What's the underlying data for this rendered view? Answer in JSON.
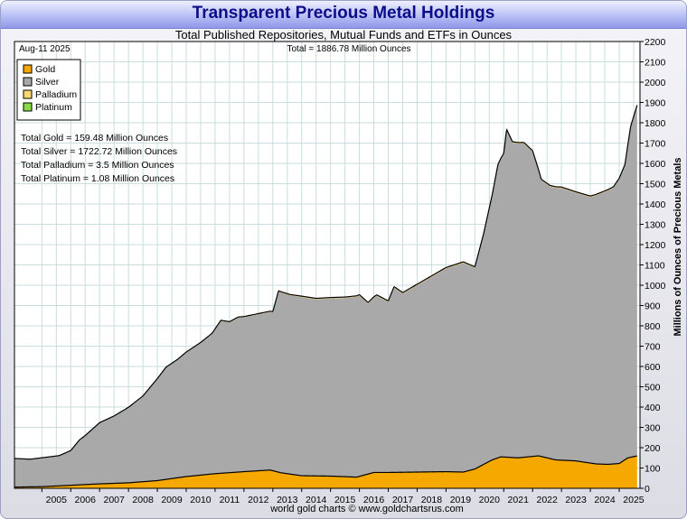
{
  "title": "Transparent Precious Metal Holdings",
  "subtitle": "Total Published Repositories, Mutual Funds and ETFs in Ounces",
  "footer": "world gold charts © www.goldchartsrus.com",
  "date_label": "Aug-11  2025",
  "total_label": "Total = 1886.78 Million Ounces",
  "colors": {
    "gold": "#f5a800",
    "silver": "#a9a9a9",
    "palladium": "#ffd86b",
    "platinum": "#88dd44",
    "grid": "#c9dede",
    "title": "#0d0d8a"
  },
  "chart_data": {
    "type": "area",
    "stacked": true,
    "ylabel": "Millions of Ounces of Precious Metals",
    "ylim": [
      0,
      2200
    ],
    "yticks": [
      0,
      100,
      200,
      300,
      400,
      500,
      600,
      700,
      800,
      900,
      1000,
      1100,
      1200,
      1300,
      1400,
      1500,
      1600,
      1700,
      1800,
      1900,
      2000,
      2100,
      2200
    ],
    "xlim": [
      2004.05,
      2025.72
    ],
    "xticks": [
      "2005",
      "2006",
      "2007",
      "2008",
      "2009",
      "2010",
      "2011",
      "2012",
      "2013",
      "2014",
      "2015",
      "2016",
      "2017",
      "2018",
      "2019",
      "2020",
      "2021",
      "2022",
      "2023",
      "2024",
      "2025"
    ],
    "grid": true,
    "legend_position": "top-left",
    "series": [
      {
        "name": "Gold",
        "x": [
          2004.05,
          2005.0,
          2006.0,
          2007.0,
          2008.0,
          2009.0,
          2010.0,
          2011.0,
          2012.0,
          2012.9,
          2013.3,
          2014.0,
          2015.0,
          2015.9,
          2016.5,
          2017.0,
          2018.0,
          2019.0,
          2019.6,
          2020.0,
          2020.6,
          2020.9,
          2021.5,
          2022.2,
          2022.8,
          2023.5,
          2024.2,
          2024.6,
          2025.0,
          2025.3,
          2025.62
        ],
        "values": [
          6,
          8,
          15,
          22,
          27,
          38,
          58,
          72,
          82,
          90,
          76,
          62,
          60,
          55,
          78,
          78,
          80,
          82,
          80,
          95,
          140,
          155,
          150,
          160,
          140,
          135,
          120,
          118,
          122,
          150,
          159.48
        ]
      },
      {
        "name": "Silver",
        "x": [
          2004.05,
          2004.6,
          2005.0,
          2005.6,
          2006.0,
          2006.3,
          2006.5,
          2007.0,
          2007.5,
          2008.0,
          2008.5,
          2009.0,
          2009.3,
          2009.7,
          2010.0,
          2010.5,
          2010.9,
          2011.2,
          2011.5,
          2011.8,
          2012.0,
          2012.5,
          2013.0,
          2013.2,
          2013.6,
          2014.0,
          2014.5,
          2015.0,
          2015.5,
          2016.0,
          2016.3,
          2016.6,
          2017.0,
          2017.2,
          2017.5,
          2018.0,
          2018.5,
          2019.0,
          2019.4,
          2019.6,
          2020.0,
          2020.3,
          2020.6,
          2020.8,
          2021.0,
          2021.1,
          2021.3,
          2021.7,
          2022.0,
          2022.3,
          2022.6,
          2023.0,
          2023.5,
          2024.0,
          2024.4,
          2024.8,
          2025.0,
          2025.2,
          2025.4,
          2025.62
        ],
        "values": [
          141,
          136,
          142,
          148,
          170,
          220,
          240,
          300,
          330,
          370,
          420,
          500,
          550,
          580,
          610,
          650,
          690,
          750,
          740,
          760,
          760,
          770,
          780,
          890,
          880,
          880,
          870,
          875,
          880,
          890,
          840,
          870,
          840,
          910,
          880,
          920,
          960,
          1000,
          1020,
          1030,
          990,
          1130,
          1300,
          1440,
          1490,
          1610,
          1550,
          1545,
          1500,
          1360,
          1340,
          1340,
          1320,
          1310,
          1335,
          1360,
          1400,
          1450,
          1627,
          1722.72
        ]
      },
      {
        "name": "Palladium",
        "x": [
          2004.05,
          2010.0,
          2015.0,
          2020.0,
          2025.62
        ],
        "values": [
          0,
          2,
          3,
          4,
          3.5
        ]
      },
      {
        "name": "Platinum",
        "x": [
          2004.05,
          2010.0,
          2015.0,
          2020.0,
          2025.62
        ],
        "values": [
          0,
          1,
          1.5,
          1.2,
          1.08
        ]
      }
    ],
    "annotations": [
      "Total Gold = 159.48 Million Ounces",
      "Total Silver = 1722.72 Million Ounces",
      "Total Palladium = 3.5 Million Ounces",
      "Total Platinum = 1.08 Million Ounces"
    ]
  }
}
